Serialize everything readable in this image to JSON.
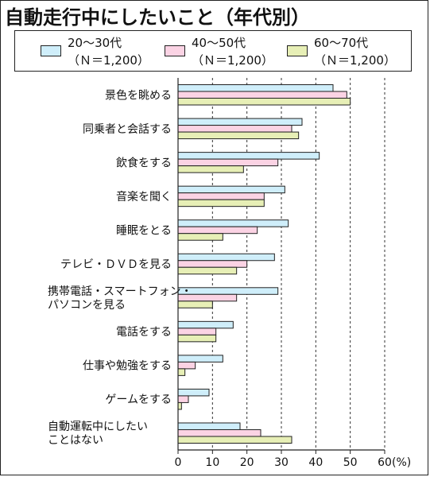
{
  "chart_data": {
    "type": "bar",
    "orientation": "horizontal",
    "title": "自動走行中にしたいこと（年代別）",
    "categories": [
      [
        "景色を眺める"
      ],
      [
        "同乗者と会話する"
      ],
      [
        "飲食をする"
      ],
      [
        "音楽を聞く"
      ],
      [
        "睡眠をとる"
      ],
      [
        "テレビ・ＤＶＤを見る"
      ],
      [
        "携帯電話・スマートフォン・",
        "パソコンを見る"
      ],
      [
        "電話をする"
      ],
      [
        "仕事や勉強をする"
      ],
      [
        "ゲームをする"
      ],
      [
        "自動運転中にしたい",
        "ことはない"
      ]
    ],
    "series": [
      {
        "name": "20～30代",
        "n": "（Ｎ＝1,200）",
        "color": "#cfeefa",
        "values": [
          45,
          36,
          41,
          31,
          32,
          28,
          29,
          16,
          13,
          9,
          18
        ]
      },
      {
        "name": "40～50代",
        "n": "（Ｎ＝1,200）",
        "color": "#fbd3e4",
        "values": [
          49,
          33,
          29,
          25,
          23,
          20,
          17,
          11,
          5,
          3,
          24
        ]
      },
      {
        "name": "60～70代",
        "n": "（Ｎ＝1,200）",
        "color": "#e7efb6",
        "values": [
          50,
          35,
          19,
          25,
          13,
          17,
          10,
          11,
          2,
          1,
          33
        ]
      }
    ],
    "xlim": [
      0,
      60
    ],
    "xticks": [
      0,
      10,
      20,
      30,
      40,
      50,
      60
    ],
    "tick_labels": [
      "0",
      "10",
      "20",
      "30",
      "40",
      "50",
      "60"
    ],
    "unit_suffix": "(%)",
    "grid": "vertical-dashed",
    "legend": "top"
  }
}
